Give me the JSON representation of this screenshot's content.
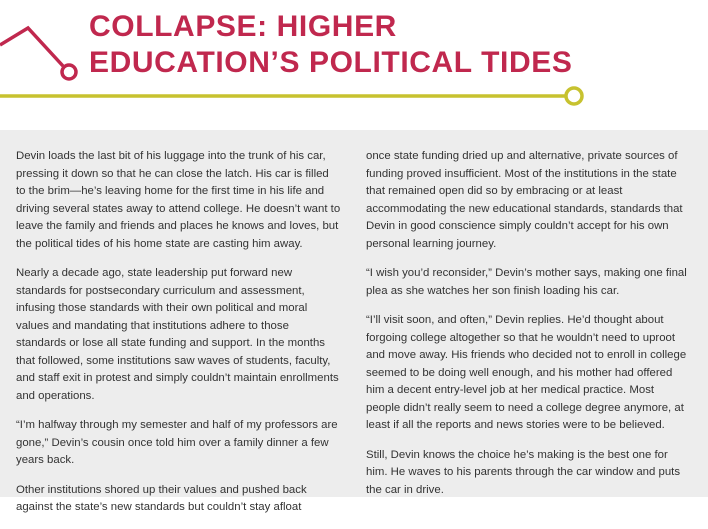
{
  "title": {
    "line1": "COLLAPSE: HIGHER",
    "line2": "EDUCATION’S POLITICAL TIDES"
  },
  "colors": {
    "accent": "#c0284e",
    "rule": "#c7c22f",
    "background": "#ededed",
    "text": "#333333"
  },
  "body": {
    "left": [
      "Devin loads the last bit of his luggage into the trunk of his car, pressing it down so that he can close the latch. His car is filled to the brim—he’s leaving home for the first time in his life and driving several states away to attend college. He doesn’t want to leave the family and friends and places he knows and loves, but the political tides of his home state are casting him away.",
      "Nearly a decade ago, state leadership put forward new standards for postsecondary curriculum and assessment, infusing those standards with their own political and moral values and mandating that institutions adhere to those standards or lose all state funding and support. In the months that followed, some institutions saw waves of students, faculty, and staff exit in protest and simply couldn’t maintain enrollments and operations.",
      "“I’m halfway through my semester and half of my professors are gone,” Devin’s cousin once told him over a family dinner a few years back.",
      "Other institutions shored up their values and pushed back against the state’s new standards but couldn’t stay afloat"
    ],
    "right": [
      "once state funding dried up and alternative, private sources of funding proved insufficient. Most of the institutions in the state that remained open did so by embracing or at least accommodating the new educational standards, standards that Devin in good conscience simply couldn’t accept for his own personal learning journey.",
      "“I wish you’d reconsider,” Devin’s mother says, making one final plea as she watches her son finish loading his car.",
      "“I’ll visit soon, and often,” Devin replies. He’d thought about forgoing college altogether so that he wouldn’t need to uproot and move away. His friends who decided not to enroll in college seemed to be doing well enough, and his mother had offered him a decent entry-level job at her medical practice. Most people didn’t really seem to need a college degree anymore, at least if all the reports and news stories were to be believed.",
      "Still, Devin knows the choice he’s making is the best one for him. He waves to his parents through the car window and puts the car in drive."
    ]
  }
}
